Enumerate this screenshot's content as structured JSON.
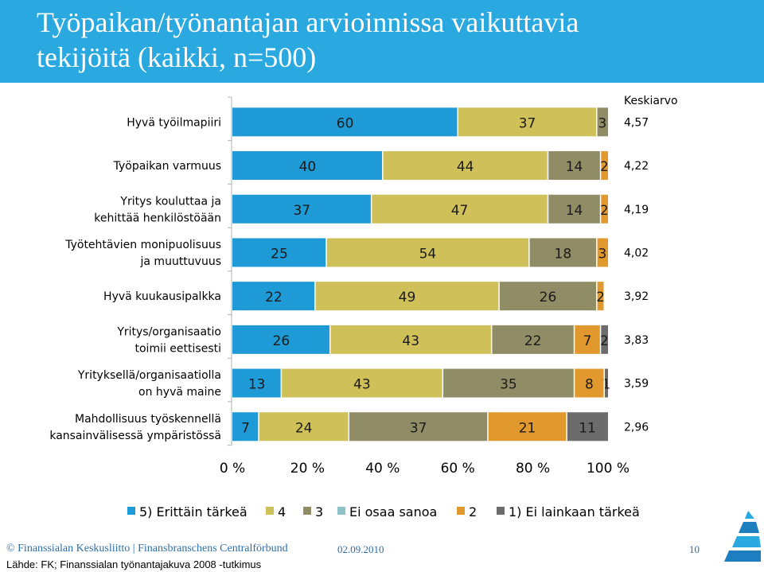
{
  "slide": {
    "title_line_1": "Työpaikan/työnantajan arvioinnissa vaikuttavia",
    "title_line_2": "tekijöitä (kaikki, n=500)",
    "footer_copyright": "© Finanssialan Keskusliitto | Finansbranschens Centralförbund",
    "footer_date": "02.09.2010",
    "page_number": "10",
    "source": "Lähde: FK; Finanssialan työnantajakuva 2008 -tutkimus",
    "logo_icon": "fk-logo-icon"
  },
  "chart_data": {
    "type": "bar",
    "orientation": "horizontal",
    "stacked": true,
    "mean_header": "Keskiarvo",
    "categories": [
      [
        "Hyvä työilmapiiri"
      ],
      [
        "Työpaikan varmuus"
      ],
      [
        "Yritys kouluttaa ja",
        "kehittää henkilöstöään"
      ],
      [
        "Työtehtävien monipuolisuus",
        "ja muuttuvuus"
      ],
      [
        "Hyvä kuukausipalkka"
      ],
      [
        "Yritys/organisaatio",
        "toimii eettisesti"
      ],
      [
        "Yrityksellä/organisaatiolla",
        "on hyvä maine"
      ],
      [
        "Mahdollisuus työskennellä",
        "kansainvälisessä ympäristössä"
      ]
    ],
    "means": [
      "4,57",
      "4,22",
      "4,19",
      "4,02",
      "3,92",
      "3,83",
      "3,59",
      "2,96"
    ],
    "series": [
      {
        "name": "5) Erittäin tärkeä",
        "color": "#1e9ad6",
        "values": [
          60,
          40,
          37,
          25,
          22,
          26,
          13,
          7
        ]
      },
      {
        "name": "4",
        "color": "#cfc05a",
        "values": [
          37,
          44,
          47,
          54,
          49,
          43,
          43,
          24
        ]
      },
      {
        "name": "3",
        "color": "#8f8c66",
        "values": [
          3,
          14,
          14,
          18,
          26,
          22,
          35,
          37
        ]
      },
      {
        "name": "Ei osaa sanoa",
        "color": "#8fc1c6",
        "values": [
          0,
          0,
          0,
          0,
          0,
          0,
          0,
          0
        ]
      },
      {
        "name": "2",
        "color": "#e1992e",
        "values": [
          0,
          2,
          2,
          3,
          2,
          7,
          8,
          21
        ]
      },
      {
        "name": "1) Ei lainkaan tärkeä",
        "color": "#6c6c6c",
        "values": [
          0,
          0,
          0,
          0,
          0,
          2,
          1,
          11
        ]
      }
    ],
    "xlim": [
      0,
      100
    ],
    "xticks": [
      "0 %",
      "20 %",
      "40 %",
      "60 %",
      "80 %",
      "100 %"
    ],
    "legend_position": "bottom",
    "grid": false
  }
}
